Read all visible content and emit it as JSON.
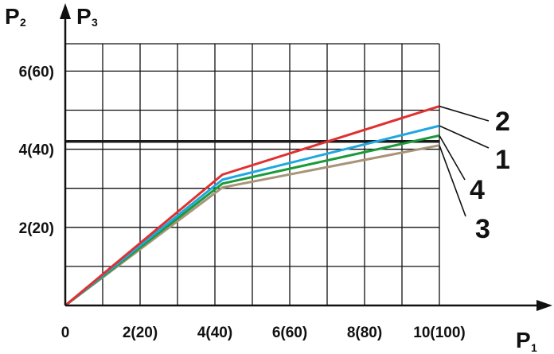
{
  "chart_data": {
    "type": "line",
    "x_axis": {
      "title": "P",
      "subscript": "1",
      "range": [
        0,
        10
      ],
      "ticks": [
        0,
        2,
        4,
        6,
        8,
        10
      ],
      "tick_labels": [
        "0",
        "2(20)",
        "4(40)",
        "6(60)",
        "8(80)",
        "10(100)"
      ]
    },
    "y_axis": {
      "titles": [
        {
          "title": "P",
          "subscript": "2"
        },
        {
          "title": "P",
          "subscript": "3"
        }
      ],
      "range": [
        0,
        6.7
      ],
      "ticks": [
        2,
        4,
        6
      ],
      "tick_labels": [
        "2(20)",
        "4(40)",
        "6(60)"
      ]
    },
    "grid": true,
    "reference_line": {
      "y": 4.2,
      "x_range": [
        0,
        10
      ],
      "color": "#1a1a1a"
    },
    "series": [
      {
        "name": "2",
        "color": "#e03030",
        "x": [
          0,
          4.2,
          10
        ],
        "y": [
          0,
          3.35,
          5.1
        ]
      },
      {
        "name": "1",
        "color": "#1ea8e0",
        "x": [
          0,
          4.2,
          10
        ],
        "y": [
          0,
          3.22,
          4.6
        ]
      },
      {
        "name": "4",
        "color": "#1a9a3a",
        "x": [
          0,
          4.2,
          10
        ],
        "y": [
          0,
          3.12,
          4.35
        ]
      },
      {
        "name": "3",
        "color": "#a89478",
        "x": [
          0,
          4.2,
          10
        ],
        "y": [
          0,
          3.02,
          4.1
        ]
      }
    ],
    "colors": {
      "axis": "#111111",
      "grid": "#111111"
    }
  }
}
